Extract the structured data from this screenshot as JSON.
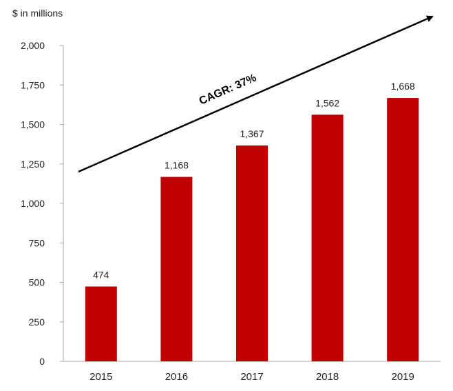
{
  "chart_data": {
    "type": "bar",
    "title": "",
    "unit_label": "$ in millions",
    "xlabel": "",
    "ylabel": "",
    "categories": [
      "2015",
      "2016",
      "2017",
      "2018",
      "2019"
    ],
    "values": [
      474,
      1168,
      1367,
      1562,
      1668
    ],
    "value_labels": [
      "474",
      "1,168",
      "1,367",
      "1,562",
      "1,668"
    ],
    "ylim": [
      0,
      2000
    ],
    "yticks": [
      0,
      250,
      500,
      750,
      1000,
      1250,
      1500,
      1750,
      2000
    ],
    "ytick_labels": [
      "0",
      "250",
      "500",
      "750",
      "1,000",
      "1,250",
      "1,500",
      "1,750",
      "2,000"
    ],
    "grid": false,
    "bar_color": "#c00000",
    "annotation": {
      "text": "CAGR:  37%",
      "kind": "upward trend arrow"
    }
  }
}
